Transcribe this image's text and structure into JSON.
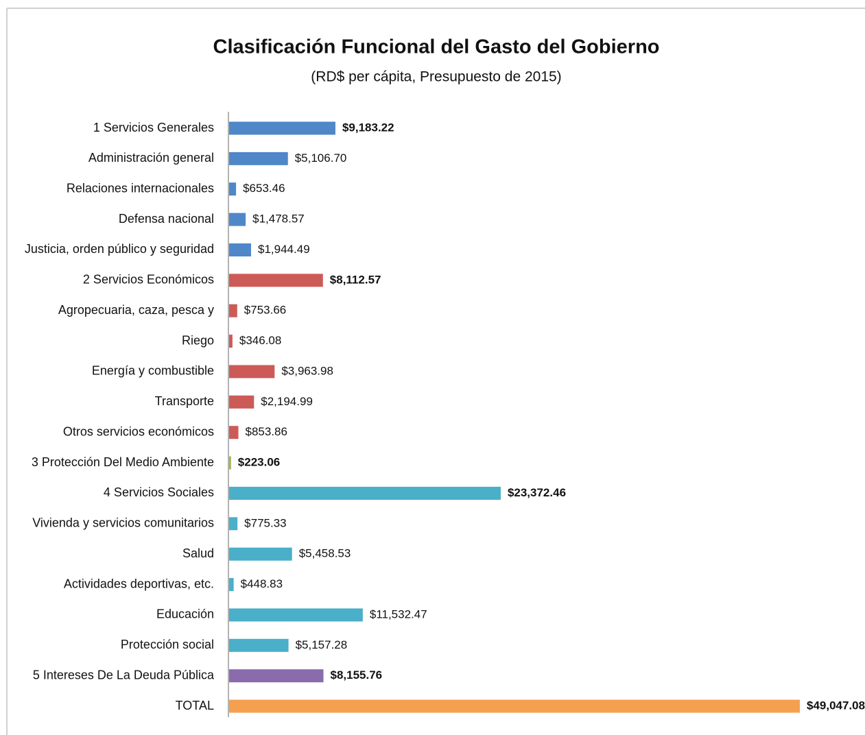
{
  "chart_data": {
    "type": "bar",
    "orientation": "horizontal",
    "title": "Clasificación Funcional del Gasto del Gobierno",
    "subtitle": "(RD$ per cápita, Presupuesto de 2015)",
    "categories": [
      "1 Servicios Generales",
      "Administración general",
      "Relaciones internacionales",
      "Defensa nacional",
      "Justicia, orden público y seguridad",
      "2 Servicios Económicos",
      "Agropecuaria, caza, pesca y",
      "Riego",
      "Energía y combustible",
      "Transporte",
      "Otros servicios económicos",
      "3 Protección Del Medio Ambiente",
      "4 Servicios Sociales",
      "Vivienda y servicios comunitarios",
      "Salud",
      "Actividades deportivas, etc.",
      "Educación",
      "Protección social",
      "5 Intereses De La Deuda Pública",
      "TOTAL"
    ],
    "values": [
      9183.22,
      5106.7,
      653.46,
      1478.57,
      1944.49,
      8112.57,
      753.66,
      346.08,
      3963.98,
      2194.99,
      853.86,
      223.06,
      23372.46,
      775.33,
      5458.53,
      448.83,
      11532.47,
      5157.28,
      8155.76,
      49047.08
    ],
    "value_labels": [
      "$9,183.22",
      "$5,106.70",
      "$653.46",
      "$1,478.57",
      "$1,944.49",
      "$8,112.57",
      "$753.66",
      "$346.08",
      "$3,963.98",
      "$2,194.99",
      "$853.86",
      "$223.06",
      "$23,372.46",
      "$775.33",
      "$5,458.53",
      "$448.83",
      "$11,532.47",
      "$5,157.28",
      "$8,155.76",
      "$49,047.08"
    ],
    "colors": [
      "#4f87c9",
      "#4f87c9",
      "#4f87c9",
      "#4f87c9",
      "#4f87c9",
      "#cc5b58",
      "#cc5b58",
      "#cc5b58",
      "#cc5b58",
      "#cc5b58",
      "#cc5b58",
      "#98b954",
      "#4aafc9",
      "#4aafc9",
      "#4aafc9",
      "#4aafc9",
      "#4aafc9",
      "#4aafc9",
      "#8a6cad",
      "#f5a04f"
    ],
    "value_label_bold": [
      true,
      false,
      false,
      false,
      false,
      true,
      false,
      false,
      false,
      false,
      false,
      true,
      true,
      false,
      false,
      false,
      false,
      false,
      true,
      true
    ]
  }
}
